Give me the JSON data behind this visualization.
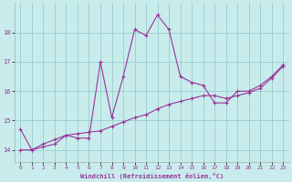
{
  "xlabel": "Windchill (Refroidissement éolien,°C)",
  "background_color": "#c8ecec",
  "line_color": "#993399",
  "grid_color": "#99cccc",
  "xlim": [
    -0.5,
    23.5
  ],
  "ylim": [
    13.6,
    19.0
  ],
  "yticks": [
    14,
    15,
    16,
    17,
    18
  ],
  "xticks": [
    0,
    1,
    2,
    3,
    4,
    5,
    6,
    7,
    8,
    9,
    10,
    11,
    12,
    13,
    14,
    15,
    16,
    17,
    18,
    19,
    20,
    21,
    22,
    23
  ],
  "curve1_x": [
    0,
    1,
    2,
    3,
    4,
    5,
    6,
    7,
    8,
    9,
    10,
    11,
    12,
    13,
    14,
    15,
    16,
    17,
    18,
    19,
    20,
    21,
    22,
    23
  ],
  "curve1_y": [
    14.7,
    14.0,
    14.1,
    14.2,
    14.5,
    14.4,
    14.4,
    17.0,
    15.1,
    16.5,
    18.1,
    17.9,
    18.6,
    18.1,
    16.5,
    16.3,
    16.2,
    15.6,
    15.6,
    16.0,
    16.0,
    16.2,
    16.5,
    16.9
  ],
  "curve2_x": [
    0,
    1,
    2,
    3,
    4,
    5,
    6,
    7,
    8,
    9,
    10,
    11,
    12,
    13,
    14,
    15,
    16,
    17,
    18,
    19,
    20,
    21,
    22,
    23
  ],
  "curve2_y": [
    14.0,
    14.0,
    14.2,
    14.35,
    14.5,
    14.55,
    14.6,
    14.65,
    14.8,
    14.95,
    15.1,
    15.2,
    15.4,
    15.55,
    15.65,
    15.75,
    15.85,
    15.85,
    15.75,
    15.85,
    15.95,
    16.1,
    16.45,
    16.85
  ]
}
